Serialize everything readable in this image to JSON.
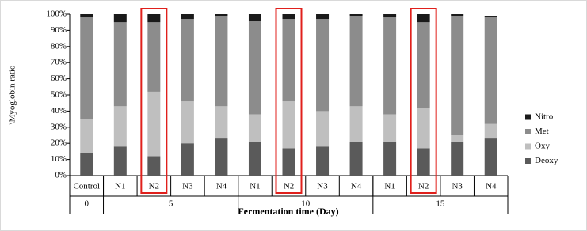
{
  "chart_data": {
    "type": "stacked-bar",
    "y_label": "\\Myoglobin ratio",
    "x_label": "Fermentation time (Day)",
    "categories": [
      "Control",
      "N1",
      "N2",
      "N3",
      "N4",
      "N1",
      "N2",
      "N3",
      "N4",
      "N1",
      "N2",
      "N3",
      "N4"
    ],
    "groups": [
      "0",
      "5",
      "10",
      "15"
    ],
    "series": [
      {
        "name": "Deoxy",
        "color": "#5a5a5a",
        "values": [
          14,
          18,
          12,
          20,
          23,
          21,
          17,
          18,
          21,
          21,
          17,
          21,
          23
        ]
      },
      {
        "name": "Oxy",
        "color": "#bfbfbf",
        "values": [
          21,
          25,
          40,
          26,
          20,
          17,
          29,
          22,
          22,
          17,
          25,
          4,
          9
        ]
      },
      {
        "name": "Met",
        "color": "#8c8c8c",
        "values": [
          63,
          52,
          43,
          51,
          56,
          58,
          51,
          57,
          56,
          60,
          53,
          74,
          66
        ]
      },
      {
        "name": "Nitro",
        "color": "#1a1a1a",
        "values": [
          2,
          5,
          5,
          3,
          1,
          4,
          3,
          3,
          1,
          2,
          5,
          1,
          1
        ]
      }
    ],
    "ylim": [
      0,
      100
    ],
    "yticks": [
      {
        "value": 0,
        "label": "0%"
      },
      {
        "value": 10,
        "label": "10%"
      },
      {
        "value": 20,
        "label": "20%"
      },
      {
        "value": 30,
        "label": "30%"
      },
      {
        "value": 40,
        "label": "40%"
      },
      {
        "value": 50,
        "label": "50%"
      },
      {
        "value": 60,
        "label": "60%"
      },
      {
        "value": 70,
        "label": "70%"
      },
      {
        "value": 80,
        "label": "80%"
      },
      {
        "value": 90,
        "label": "90%"
      },
      {
        "value": 100,
        "label": "100%"
      }
    ],
    "legend": "right"
  }
}
